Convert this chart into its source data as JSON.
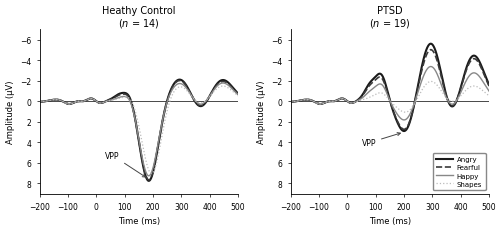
{
  "title_left": "Heathy Control",
  "subtitle_left": "($n$ = 14)",
  "title_right": "PTSD",
  "subtitle_right": "($n$ = 19)",
  "xlabel": "Time (ms)",
  "ylabel": "Amplitude (μV)",
  "xlim": [
    -200,
    500
  ],
  "ylim": [
    9,
    -7
  ],
  "xticks": [
    -200,
    -100,
    0,
    100,
    200,
    300,
    400,
    500
  ],
  "yticks": [
    -6,
    -4,
    -2,
    0,
    2,
    4,
    6,
    8
  ],
  "legend_labels": [
    "Angry",
    "Fearful",
    "Happy",
    "Shapes"
  ],
  "background_color": "#ffffff",
  "hc_params": [
    {
      "p1": -0.6,
      "n1": -1.1,
      "vpp": 7.8,
      "p2": -2.2,
      "n2": 1.1,
      "p3": -2.1,
      "vpp_t": 185
    },
    {
      "p1": -0.5,
      "n1": -1.0,
      "vpp": 7.7,
      "p2": -2.1,
      "n2": 1.0,
      "p3": -1.95,
      "vpp_t": 185
    },
    {
      "p1": -0.3,
      "n1": -0.8,
      "vpp": 7.3,
      "p2": -1.8,
      "n2": 0.8,
      "p3": -1.8,
      "vpp_t": 185
    },
    {
      "p1": -0.2,
      "n1": -0.6,
      "vpp": 7.1,
      "p2": -1.5,
      "n2": 0.6,
      "p3": -1.5,
      "vpp_t": 195
    }
  ],
  "ptsd_params": [
    {
      "p1": -1.5,
      "n1": -2.5,
      "vpp": 3.2,
      "p2": -5.8,
      "n2": 2.0,
      "p3": -4.5,
      "vpp_t": 205
    },
    {
      "p1": -1.3,
      "n1": -2.2,
      "vpp": 3.0,
      "p2": -5.2,
      "n2": 1.8,
      "p3": -4.2,
      "vpp_t": 205
    },
    {
      "p1": -0.8,
      "n1": -1.6,
      "vpp": 2.0,
      "p2": -3.5,
      "n2": 1.2,
      "p3": -2.8,
      "vpp_t": 205
    },
    {
      "p1": -0.3,
      "n1": -0.8,
      "vpp": 1.2,
      "p2": -2.0,
      "n2": 0.5,
      "p3": -1.5,
      "vpp_t": 210
    }
  ],
  "line_configs": [
    {
      "color": "#1a1a1a",
      "lw": 1.5,
      "ls": "-"
    },
    {
      "color": "#3a3a3a",
      "lw": 1.2,
      "ls": "--"
    },
    {
      "color": "#888888",
      "lw": 1.0,
      "ls": "-"
    },
    {
      "color": "#bbbbbb",
      "lw": 0.9,
      "ls": ":"
    }
  ]
}
